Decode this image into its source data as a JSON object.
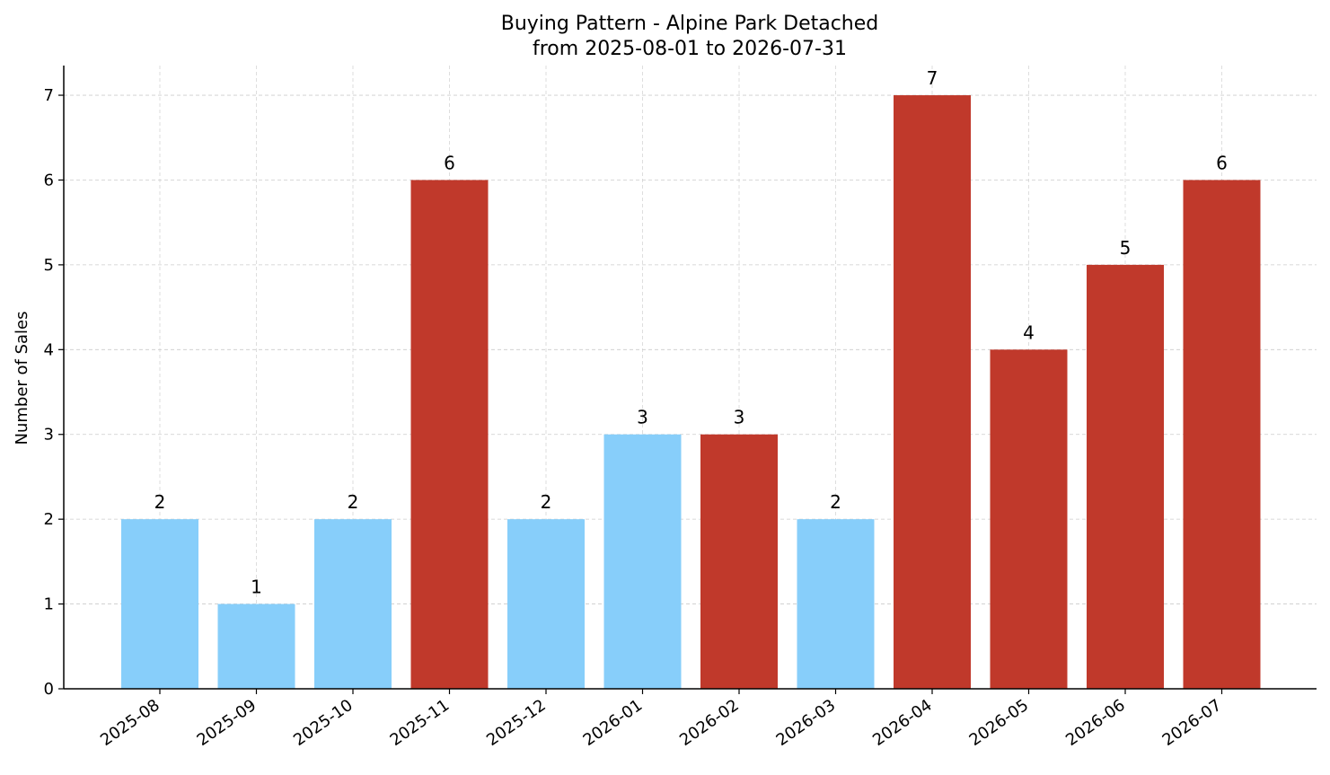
{
  "chart_data": {
    "type": "bar",
    "title": "Buying Pattern - Alpine Park Detached",
    "subtitle": "from 2025-08-01 to 2026-07-31",
    "xlabel": "",
    "ylabel": "Number of Sales",
    "categories": [
      "2025-08",
      "2025-09",
      "2025-10",
      "2025-11",
      "2025-12",
      "2026-01",
      "2026-02",
      "2026-03",
      "2026-04",
      "2026-05",
      "2026-06",
      "2026-07"
    ],
    "values": [
      2,
      1,
      2,
      6,
      2,
      3,
      3,
      2,
      7,
      4,
      5,
      6
    ],
    "bar_colors": [
      "#87CEFA",
      "#87CEFA",
      "#87CEFA",
      "#C0392B",
      "#87CEFA",
      "#87CEFA",
      "#C0392B",
      "#87CEFA",
      "#C0392B",
      "#C0392B",
      "#C0392B",
      "#C0392B"
    ],
    "ylim": [
      0,
      7.35
    ],
    "yticks": [
      0,
      1,
      2,
      3,
      4,
      5,
      6,
      7
    ],
    "grid": true,
    "data_labels": true
  }
}
